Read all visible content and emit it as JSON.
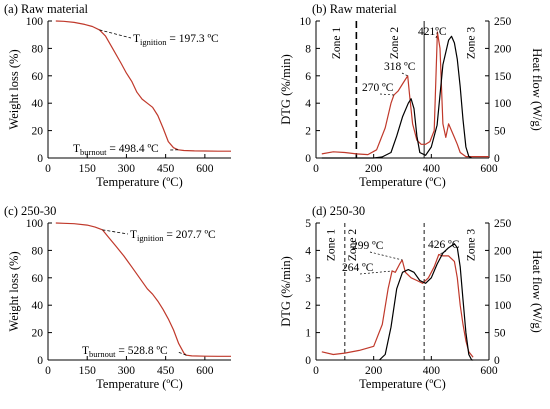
{
  "colors": {
    "red_series": "#c0392b",
    "black_series": "#000000"
  },
  "chart_data": [
    {
      "id": "a",
      "type": "line",
      "title": "(a)  Raw material",
      "xlabel": "Temperature (ºC)",
      "ylabel": "Weight loss (%)",
      "xlim": [
        0,
        700
      ],
      "ylim": [
        0,
        100
      ],
      "xticks": [
        "0",
        "150",
        "300",
        "450",
        "600"
      ],
      "xtick_values": [
        0,
        150,
        300,
        450,
        600
      ],
      "yticks": [
        "0",
        "20",
        "40",
        "60",
        "80",
        "100"
      ],
      "ytick_values": [
        0,
        20,
        40,
        60,
        80,
        100
      ],
      "series": [
        {
          "color": "#c0392b",
          "x": [
            30,
            60,
            100,
            140,
            170,
            197,
            220,
            250,
            280,
            300,
            320,
            340,
            360,
            380,
            400,
            420,
            440,
            460,
            480,
            498,
            520,
            560,
            600,
            650,
            700
          ],
          "y": [
            100,
            99.8,
            99,
            97.5,
            96,
            93.5,
            89,
            79,
            69,
            62,
            56,
            48,
            43,
            40,
            37,
            31,
            22,
            12,
            7.5,
            6,
            5.5,
            5.2,
            5.1,
            5,
            5
          ]
        }
      ],
      "annotations": [
        {
          "text": "T",
          "sub": "ignition",
          "rest": " = 197.3 ºC",
          "x": 197,
          "y": 93.5
        },
        {
          "text": "T",
          "sub": "burnout",
          "rest": " = 498.4 ºC",
          "x": 498,
          "y": 6
        }
      ]
    },
    {
      "id": "b",
      "type": "line",
      "title": "(b)  Raw material",
      "xlabel": "Temperature (ºC)",
      "ylabel": "DTG (%/min)",
      "y2label": "Heat flow (W/g)",
      "xlim": [
        0,
        600
      ],
      "ylim": [
        0,
        10
      ],
      "y2lim": [
        0,
        250
      ],
      "xticks": [
        "0",
        "200",
        "400",
        "600"
      ],
      "xtick_values": [
        0,
        200,
        400,
        600
      ],
      "yticks": [
        "0",
        "2",
        "4",
        "6",
        "8",
        "10"
      ],
      "ytick_values": [
        0,
        2,
        4,
        6,
        8,
        10
      ],
      "y2ticks": [
        "0",
        "50",
        "100",
        "150",
        "200",
        "250"
      ],
      "y2tick_values": [
        0,
        50,
        100,
        150,
        200,
        250
      ],
      "zones": [
        {
          "label": "Zone 1",
          "x": 70
        },
        {
          "label": "Zone 2",
          "x": 270
        },
        {
          "label": "Zone 3",
          "x": 535
        }
      ],
      "dividers": [
        {
          "x": 140,
          "style": "dashed"
        },
        {
          "x": 375,
          "style": "solid"
        }
      ],
      "series": [
        {
          "name": "DTG",
          "axis": "left",
          "color": "#c0392b",
          "x": [
            20,
            60,
            100,
            140,
            180,
            210,
            240,
            260,
            270,
            285,
            300,
            318,
            325,
            335,
            350,
            365,
            380,
            395,
            410,
            421,
            430,
            440,
            450,
            460,
            470,
            480,
            490,
            500,
            520,
            560,
            600
          ],
          "y": [
            0.3,
            0.45,
            0.4,
            0.3,
            0.25,
            0.6,
            2.2,
            4.0,
            4.6,
            4.9,
            5.4,
            6.0,
            4.5,
            2.5,
            1.3,
            1.0,
            1.0,
            1.2,
            2.0,
            9.2,
            8.0,
            2.5,
            1.5,
            2.5,
            2.0,
            1.5,
            1.0,
            0.4,
            0.1,
            0.1,
            0.1
          ]
        },
        {
          "name": "Heat flow",
          "axis": "right",
          "color": "#000000",
          "x": [
            20,
            100,
            200,
            230,
            260,
            280,
            300,
            320,
            330,
            340,
            350,
            360,
            380,
            400,
            420,
            440,
            460,
            470,
            480,
            490,
            500,
            510,
            520,
            530,
            540
          ],
          "y": [
            0,
            0,
            0,
            2,
            10,
            40,
            75,
            100,
            108,
            90,
            40,
            10,
            5,
            20,
            60,
            170,
            215,
            222,
            210,
            180,
            130,
            70,
            20,
            3,
            0
          ]
        }
      ],
      "annotations": [
        {
          "text": "270 ºC",
          "x": 270,
          "y": 4.6
        },
        {
          "text": "318 ºC",
          "x": 318,
          "y": 6.0
        },
        {
          "text": "421ºC",
          "x": 421,
          "y": 9.2
        }
      ]
    },
    {
      "id": "c",
      "type": "line",
      "title": "(c)  250-30",
      "xlabel": "Temperature (ºC)",
      "ylabel": "Weight loss (%)",
      "xlim": [
        0,
        700
      ],
      "ylim": [
        0,
        100
      ],
      "xticks": [
        "0",
        "150",
        "300",
        "450",
        "600"
      ],
      "xtick_values": [
        0,
        150,
        300,
        450,
        600
      ],
      "yticks": [
        "0",
        "20",
        "40",
        "60",
        "80",
        "100"
      ],
      "ytick_values": [
        0,
        20,
        40,
        60,
        80,
        100
      ],
      "series": [
        {
          "color": "#c0392b",
          "x": [
            30,
            60,
            100,
            150,
            180,
            208,
            230,
            260,
            290,
            320,
            350,
            380,
            400,
            420,
            440,
            460,
            480,
            500,
            520,
            529,
            550,
            600,
            650,
            700
          ],
          "y": [
            100,
            99.8,
            99.5,
            98.5,
            97,
            95,
            90,
            83,
            76,
            68,
            60,
            52,
            48,
            43,
            37,
            30,
            22,
            12,
            5,
            3.5,
            3,
            2.8,
            2.7,
            2.7
          ]
        }
      ],
      "annotations": [
        {
          "text": "T",
          "sub": "ignition",
          "rest": " = 207.7 ºC",
          "x": 208,
          "y": 95
        },
        {
          "text": "T",
          "sub": "burnout",
          "rest": " = 528.8 ºC",
          "x": 529,
          "y": 3.5
        }
      ]
    },
    {
      "id": "d",
      "type": "line",
      "title": "(d)  250-30",
      "xlabel": "Temperature (ºC)",
      "ylabel": "DTG (%/min)",
      "y2label": "Heat flow (W/g)",
      "xlim": [
        0,
        600
      ],
      "ylim": [
        0,
        5
      ],
      "y2lim": [
        0,
        250
      ],
      "xticks": [
        "0",
        "200",
        "400",
        "600"
      ],
      "xtick_values": [
        0,
        200,
        400,
        600
      ],
      "yticks": [
        "0",
        "1",
        "2",
        "3",
        "4",
        "5"
      ],
      "ytick_values": [
        0,
        1,
        2,
        3,
        4,
        5
      ],
      "y2ticks": [
        "0",
        "50",
        "100",
        "150",
        "200",
        "250"
      ],
      "y2tick_values": [
        0,
        50,
        100,
        150,
        200,
        250
      ],
      "zones": [
        {
          "label": "Zone 1",
          "x": 50
        },
        {
          "label": "Zone 2",
          "x": 125
        },
        {
          "label": "Zone 3",
          "x": 535
        }
      ],
      "dividers": [
        {
          "x": 100,
          "style": "dashed"
        },
        {
          "x": 375,
          "style": "dashed"
        }
      ],
      "series": [
        {
          "name": "DTG",
          "axis": "left",
          "color": "#c0392b",
          "x": [
            20,
            60,
            100,
            150,
            200,
            230,
            250,
            264,
            275,
            290,
            299,
            310,
            330,
            350,
            370,
            390,
            410,
            426,
            440,
            460,
            480,
            490,
            500,
            510,
            520,
            530,
            545
          ],
          "y": [
            0.3,
            0.2,
            0.25,
            0.35,
            0.5,
            1.3,
            2.6,
            3.25,
            3.2,
            3.5,
            3.65,
            3.2,
            3.0,
            2.9,
            2.8,
            3.0,
            3.4,
            3.85,
            3.8,
            3.8,
            3.6,
            3.0,
            2.0,
            1.3,
            0.7,
            0.3,
            0.1
          ]
        },
        {
          "name": "Heat flow",
          "axis": "right",
          "color": "#000000",
          "x": [
            220,
            240,
            260,
            280,
            300,
            320,
            340,
            360,
            380,
            400,
            420,
            440,
            460,
            480,
            490,
            500,
            510,
            520,
            530,
            540,
            545
          ],
          "y": [
            0,
            10,
            60,
            130,
            160,
            165,
            160,
            145,
            140,
            150,
            175,
            195,
            205,
            212,
            205,
            170,
            110,
            50,
            10,
            0,
            0
          ]
        }
      ],
      "annotations": [
        {
          "text": "264 ºC",
          "x": 264,
          "y": 3.25
        },
        {
          "text": "299 ºC",
          "x": 299,
          "y": 3.65
        },
        {
          "text": "426 ºC",
          "x": 426,
          "y": 3.85
        }
      ]
    }
  ]
}
